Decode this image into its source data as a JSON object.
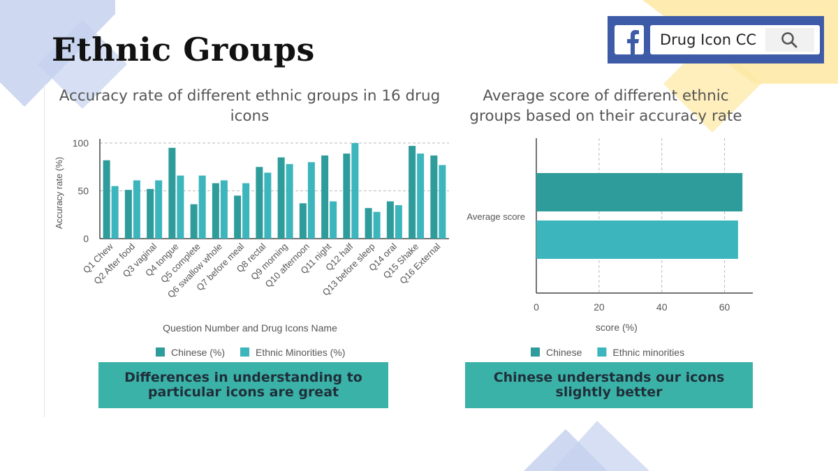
{
  "slide": {
    "title": "Ethnic Groups",
    "facebook": {
      "search_text": "Drug Icon CC"
    }
  },
  "colors": {
    "chinese": "#2e9c9b",
    "minorities": "#3cb5bd",
    "callout_bg": "#3bb2a8",
    "deco_blue": "#c5d1ee",
    "deco_yellow": "#fde9a6",
    "fb_blue": "#3e5ba8"
  },
  "icons": [
    "facebook-logo-icon",
    "search-icon"
  ],
  "chart_data": [
    {
      "type": "bar",
      "orientation": "vertical",
      "title": "Accuracy rate of different ethnic groups in 16 drug icons",
      "xlabel": "Question Number and Drug Icons Name",
      "ylabel": "Accuracy rate (%)",
      "ylim": [
        0,
        100
      ],
      "yticks": [
        0,
        50,
        100
      ],
      "grid": "horizontal-dashed",
      "legend": "bottom",
      "categories": [
        "Q1 Chew",
        "Q2 After food",
        "Q3 vaginal",
        "Q4 tongue",
        "Q5 complete",
        "Q6 swallow whole",
        "Q7 before meal",
        "Q8 rectal",
        "Q9 morning",
        "Q10 afternoon",
        "Q11 night",
        "Q12 half",
        "Q13 before sleep",
        "Q14 oral",
        "Q15 Shake",
        "Q16 External"
      ],
      "series": [
        {
          "name": "Chinese (%)",
          "values": [
            82,
            51,
            52,
            95,
            36,
            58,
            45,
            75,
            85,
            37,
            87,
            89,
            32,
            39,
            97,
            87
          ]
        },
        {
          "name": "Ethnic Minorities (%)",
          "values": [
            55,
            61,
            61,
            66,
            66,
            61,
            58,
            69,
            78,
            80,
            39,
            100,
            28,
            35,
            89,
            77
          ]
        }
      ],
      "callout": "Differences in understanding to particular icons are great"
    },
    {
      "type": "bar",
      "orientation": "horizontal",
      "title": "Average score of different ethnic groups based on their accuracy rate",
      "xlabel": "score (%)",
      "ylabel": "",
      "xlim": [
        0,
        69
      ],
      "xticks": [
        0,
        20,
        40,
        60
      ],
      "grid": "vertical-dashed",
      "legend": "bottom",
      "categories": [
        "Average score"
      ],
      "series": [
        {
          "name": "Chinese",
          "values": [
            65.7
          ]
        },
        {
          "name": "Ethnic minorities",
          "values": [
            64.3
          ]
        }
      ],
      "callout": "Chinese understands our icons slightly better"
    }
  ]
}
